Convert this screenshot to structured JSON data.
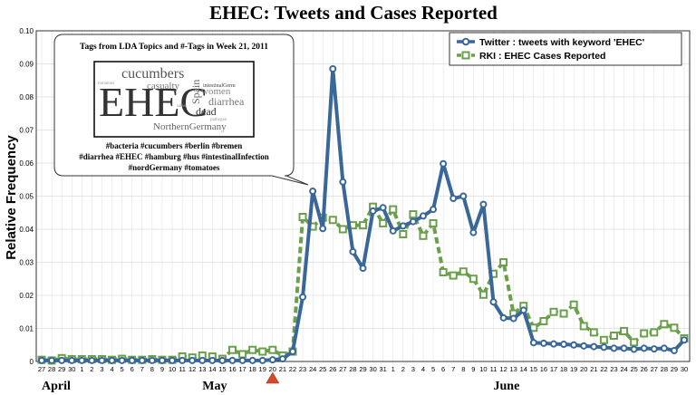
{
  "chart_data": {
    "type": "line",
    "title": "EHEC: Tweets and Cases Reported",
    "ylabel": "Relative Frequency",
    "ylim": [
      0,
      0.1
    ],
    "yticks": [
      "0",
      "0.01",
      "0.02",
      "0.03",
      "0.04",
      "0.05",
      "0.06",
      "0.07",
      "0.08",
      "0.09",
      "0.10"
    ],
    "grid": true,
    "legend_position": "top-right",
    "x": [
      "27",
      "28",
      "29",
      "30",
      "1",
      "2",
      "3",
      "4",
      "5",
      "6",
      "7",
      "8",
      "9",
      "10",
      "11",
      "12",
      "13",
      "14",
      "15",
      "16",
      "17",
      "18",
      "19",
      "20",
      "21",
      "22",
      "23",
      "24",
      "25",
      "26",
      "27",
      "28",
      "29",
      "30",
      "31",
      "1",
      "2",
      "3",
      "4",
      "5",
      "6",
      "7",
      "8",
      "9",
      "10",
      "11",
      "12",
      "13",
      "14",
      "15",
      "16",
      "17",
      "18",
      "19",
      "20",
      "21",
      "22",
      "23",
      "24",
      "25",
      "26",
      "27",
      "28",
      "29",
      "30"
    ],
    "months": [
      {
        "label": "April",
        "at": 0
      },
      {
        "label": "May",
        "at": 16
      },
      {
        "label": "June",
        "at": 45
      }
    ],
    "marker_day_index": 23,
    "series": [
      {
        "name": "Twitter : tweets with keyword 'EHEC'",
        "color": "#3a6799",
        "style": "solid",
        "marker": "circle",
        "values": [
          0.0003,
          0.0003,
          0.0003,
          0.0003,
          0.0003,
          0.0003,
          0.0003,
          0.0003,
          0.0003,
          0.0003,
          0.0003,
          0.0003,
          0.0003,
          0.0003,
          0.0003,
          0.0003,
          0.0003,
          0.0003,
          0.0003,
          0.0003,
          0.0003,
          0.0003,
          0.0003,
          0.0005,
          0.0008,
          0.003,
          0.0195,
          0.0515,
          0.0402,
          0.0885,
          0.0543,
          0.0332,
          0.0282,
          0.0455,
          0.0465,
          0.0395,
          0.041,
          0.0423,
          0.044,
          0.046,
          0.0598,
          0.0493,
          0.05,
          0.039,
          0.0475,
          0.018,
          0.0132,
          0.013,
          0.0155,
          0.0057,
          0.0055,
          0.0053,
          0.0052,
          0.005,
          0.0047,
          0.0045,
          0.0043,
          0.004,
          0.004,
          0.0037,
          0.004,
          0.0038,
          0.004,
          0.0033,
          0.0065
        ]
      },
      {
        "name": "RKI : EHEC Cases Reported",
        "color": "#6aa04c",
        "style": "dashed",
        "marker": "square",
        "values": [
          0.0005,
          0.0003,
          0.001,
          0.0007,
          0.0007,
          0.0007,
          0.0007,
          0.0005,
          0.0008,
          0.0005,
          0.0005,
          0.0007,
          0.0005,
          0.0005,
          0.0015,
          0.0012,
          0.0018,
          0.0015,
          0.0008,
          0.0035,
          0.0022,
          0.0035,
          0.003,
          0.0035,
          0.0018,
          0.003,
          0.0437,
          0.0408,
          0.0435,
          0.0428,
          0.04,
          0.0412,
          0.0412,
          0.0468,
          0.0418,
          0.046,
          0.0385,
          0.0445,
          0.038,
          0.0418,
          0.027,
          0.026,
          0.0272,
          0.025,
          0.0202,
          0.0265,
          0.03,
          0.0145,
          0.0168,
          0.0102,
          0.0122,
          0.015,
          0.0145,
          0.0172,
          0.0107,
          0.0088,
          0.0065,
          0.0078,
          0.0092,
          0.0058,
          0.0085,
          0.0088,
          0.0113,
          0.0102,
          0.007
        ]
      }
    ],
    "annotation": {
      "title": "Tags from LDA Topics and #-Tags in Week 21, 2011",
      "hashtag_lines": [
        "#bacteria #cucumbers #berlin #bremen",
        "#diarrhea #EHEC #hamburg #hus #intestinalInfection",
        "#nordGermany #tomatoes"
      ],
      "word_cloud": [
        {
          "text": "EHEC",
          "size": 46,
          "color": "#333333"
        },
        {
          "text": "cucumbers",
          "size": 16,
          "color": "#555555"
        },
        {
          "text": "casualty",
          "size": 11,
          "color": "#777777"
        },
        {
          "text": "Spain",
          "size": 12,
          "color": "#666666"
        },
        {
          "text": "intestinalGerm",
          "size": 6,
          "color": "#444444"
        },
        {
          "text": "women",
          "size": 11,
          "color": "#888888"
        },
        {
          "text": "diarrhea",
          "size": 12,
          "color": "#777777"
        },
        {
          "text": "dead",
          "size": 12,
          "color": "#333333"
        },
        {
          "text": "tomatoes",
          "size": 5,
          "color": "#999999"
        },
        {
          "text": "salad",
          "size": 5,
          "color": "#999999"
        },
        {
          "text": "pathogen",
          "size": 5,
          "color": "#999999"
        },
        {
          "text": "NorthernGermany",
          "size": 11,
          "color": "#666666"
        }
      ]
    }
  }
}
